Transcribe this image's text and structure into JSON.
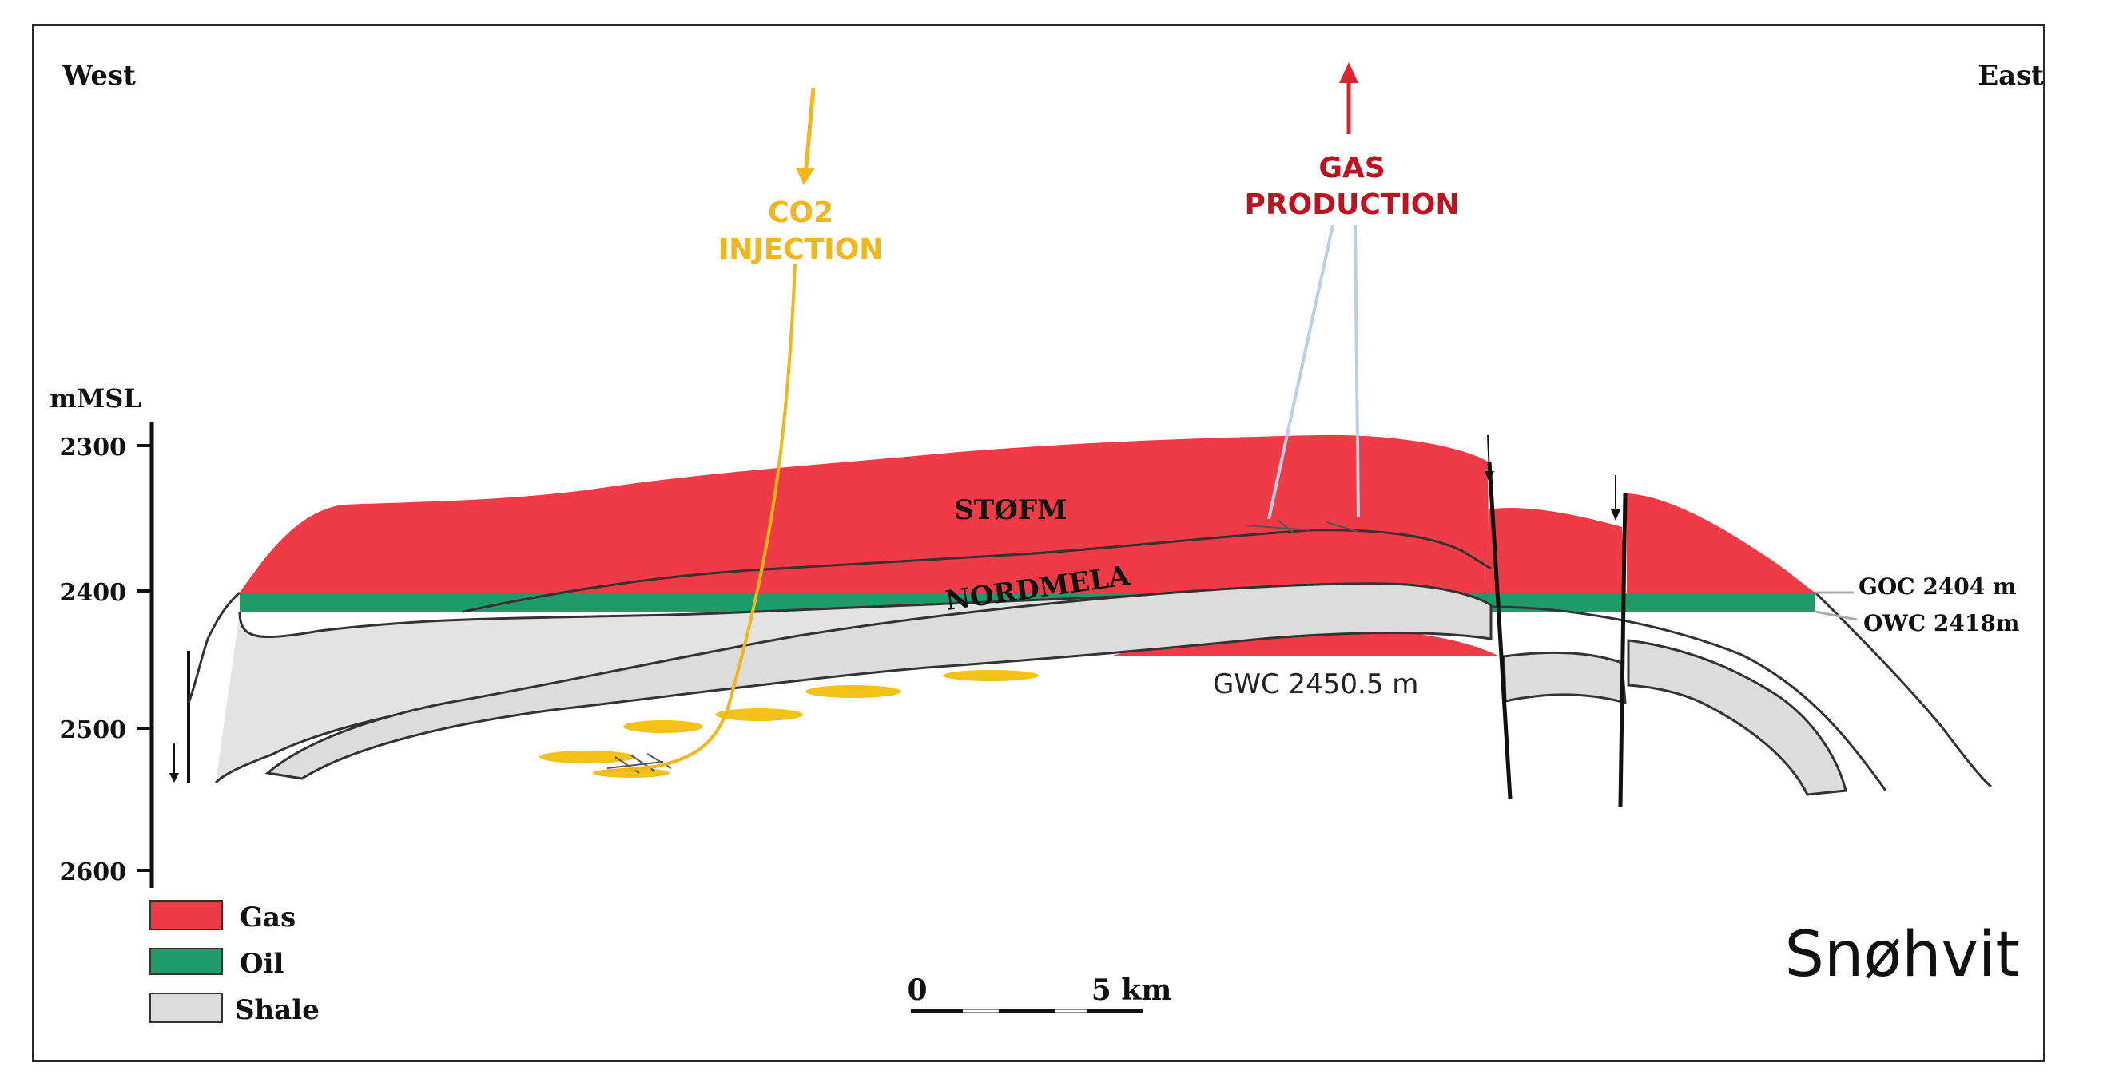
{
  "orientation": {
    "west": "West",
    "east": "East"
  },
  "axis": {
    "unit_label": "mMSL",
    "ticks": [
      "2300",
      "2400",
      "2500",
      "2600"
    ]
  },
  "wells": {
    "injection_label_line1": "CO2",
    "injection_label_line2": "INJECTION",
    "production_label_line1": "GAS",
    "production_label_line2": "PRODUCTION"
  },
  "formations": {
    "upper": "STØFM",
    "lower": "NORDMELA"
  },
  "contacts": {
    "goc": "GOC 2404 m",
    "owc": "OWC 2418m",
    "gwc": "GWC 2450.5 m"
  },
  "legend": {
    "items": [
      {
        "label": "Gas",
        "color": "#ee3b45"
      },
      {
        "label": "Oil",
        "color": "#1f9a6a"
      },
      {
        "label": "Shale",
        "color": "#dcdcdc"
      }
    ]
  },
  "scale_bar": {
    "start": "0",
    "end": "5 km"
  },
  "field_name": "Snøhvit",
  "colors": {
    "co2": "#f2b51a",
    "production": "#c0111f",
    "well_stem": "#b8cfe6"
  }
}
